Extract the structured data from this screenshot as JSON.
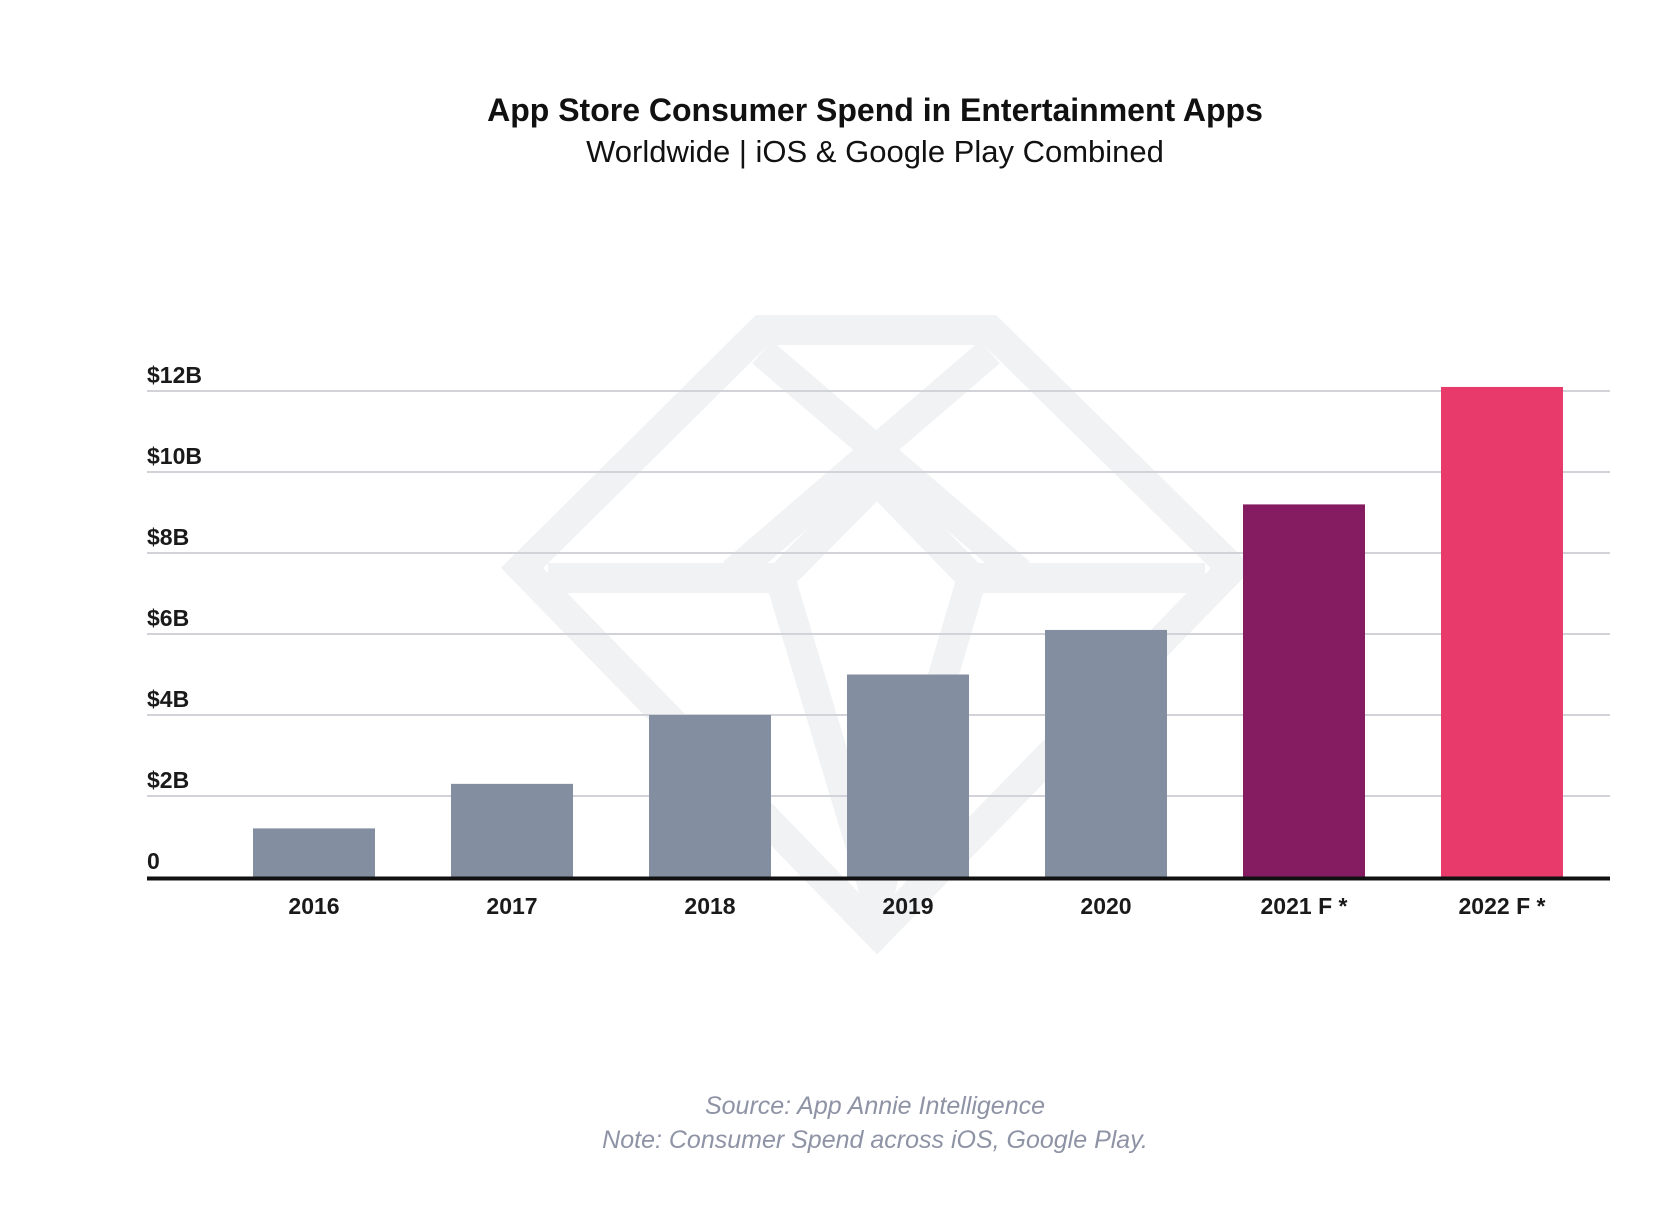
{
  "chart_data": {
    "type": "bar",
    "title": "App Store Consumer Spend in Entertainment Apps",
    "subtitle": "Worldwide | iOS & Google Play Combined",
    "categories": [
      "2016",
      "2017",
      "2018",
      "2019",
      "2020",
      "2021 F *",
      "2022 F *"
    ],
    "values": [
      1.2,
      2.3,
      4.0,
      5.0,
      6.1,
      9.2,
      12.1
    ],
    "unit": "billions USD",
    "ylim": [
      0,
      12
    ],
    "yticks": [
      0,
      2,
      4,
      6,
      8,
      10,
      12
    ],
    "ytick_labels": [
      "0",
      "$2B",
      "$4B",
      "$6B",
      "$8B",
      "$10B",
      "$12B"
    ],
    "xlabel": "",
    "ylabel": "",
    "grid": true,
    "legend": "none",
    "bar_colors": [
      "#848ea1",
      "#848ea1",
      "#848ea1",
      "#848ea1",
      "#848ea1",
      "#851c61",
      "#e83a6b"
    ]
  },
  "footer": {
    "source": "Source: App Annie Intelligence",
    "note": "Note: Consumer Spend across iOS, Google Play."
  },
  "colors": {
    "grid": "#d2d3d8",
    "axis": "#111111",
    "watermark": "#f1f2f4"
  },
  "icons": {
    "watermark": "diamond-logo-watermark-icon"
  }
}
